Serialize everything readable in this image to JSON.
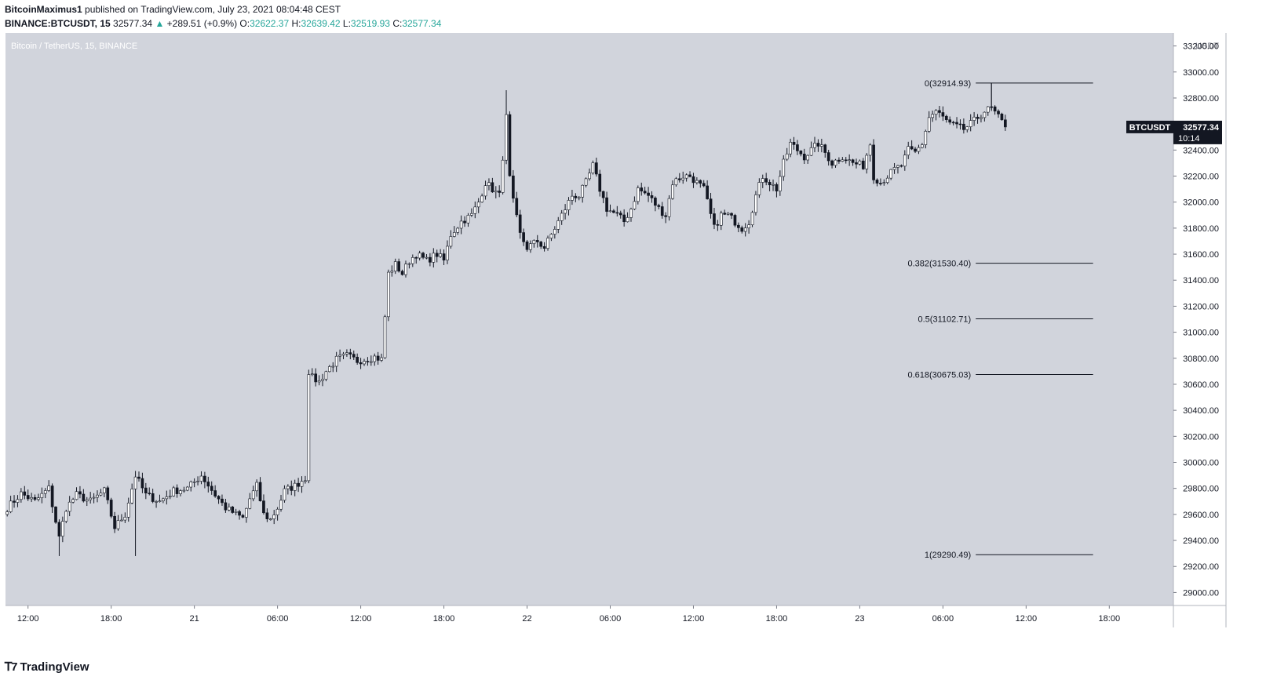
{
  "header": {
    "author": "BitcoinMaximus1",
    "published_text": "published on TradingView.com, July 23, 2021 08:04:48 CEST",
    "symbol": "BINANCE:BTCUSDT, 15",
    "last": "32577.34",
    "change": "+289.51 (+0.9%)",
    "change_arrow": "▲",
    "o_label": "O:",
    "o_value": "32622.37",
    "h_label": "H:",
    "h_value": "32639.42",
    "l_label": "L:",
    "l_value": "32519.93",
    "c_label": "C:",
    "c_value": "32577.34"
  },
  "footer": {
    "brand": "TradingView",
    "logo_icon": "tradingview-logo-icon"
  },
  "colors": {
    "plot_bg": "#d1d4dc",
    "positive": "#26a69a",
    "candle": "#131722",
    "label_bg": "#131722",
    "fib_line": "#131722"
  },
  "chart_data": {
    "type": "candlestick",
    "title": "Bitcoin / TetherUS, 15, BINANCE",
    "unit_label": "USDT",
    "ylim": [
      28900,
      33300
    ],
    "y_ticks": [
      29000,
      29200,
      29400,
      29600,
      29800,
      30000,
      30200,
      30400,
      30600,
      30800,
      31000,
      31200,
      31400,
      31600,
      31800,
      32000,
      32200,
      32400,
      32600,
      32800,
      33000,
      33200
    ],
    "y_tick_labels": [
      "29000.00",
      "29200.00",
      "29400.00",
      "29600.00",
      "29800.00",
      "30000.00",
      "30200.00",
      "30400.00",
      "30600.00",
      "30800.00",
      "31000.00",
      "31200.00",
      "31400.00",
      "31600.00",
      "31800.00",
      "32000.00",
      "32200.00",
      "32400.00",
      "32600.00",
      "32800.00",
      "33000.00",
      "33200.00"
    ],
    "x_tick_labels": [
      "12:00",
      "18:00",
      "21",
      "06:00",
      "12:00",
      "18:00",
      "22",
      "06:00",
      "12:00",
      "18:00",
      "23",
      "06:00",
      "12:00",
      "18:00"
    ],
    "x_tick_index": [
      6,
      30,
      54,
      78,
      102,
      126,
      150,
      174,
      198,
      222,
      246,
      270,
      294,
      318
    ],
    "n_slots": 337,
    "price_label": {
      "symbol": "BTCUSDT",
      "value": "32577.34",
      "countdown": "10:14"
    },
    "fib_levels": [
      {
        "label": "0(32914.93)",
        "value": 32914.93,
        "has_connector": true
      },
      {
        "label": "0.382(31530.40)",
        "value": 31530.4
      },
      {
        "label": "0.5(31102.71)",
        "value": 31102.71
      },
      {
        "label": "0.618(30675.03)",
        "value": 30675.03
      },
      {
        "label": "1(29290.49)",
        "value": 29290.49
      }
    ],
    "fib_start_index": 284,
    "fib_end_index": 302,
    "key_points": [
      [
        0,
        29650
      ],
      [
        4,
        29760
      ],
      [
        8,
        29700
      ],
      [
        12,
        29800
      ],
      [
        15,
        29420
      ],
      [
        17,
        29650
      ],
      [
        20,
        29750
      ],
      [
        24,
        29700
      ],
      [
        28,
        29780
      ],
      [
        31,
        29500
      ],
      [
        34,
        29600
      ],
      [
        37,
        29900
      ],
      [
        40,
        29750
      ],
      [
        44,
        29700
      ],
      [
        48,
        29780
      ],
      [
        52,
        29800
      ],
      [
        56,
        29900
      ],
      [
        60,
        29750
      ],
      [
        63,
        29650
      ],
      [
        66,
        29600
      ],
      [
        68,
        29570
      ],
      [
        70,
        29720
      ],
      [
        72,
        29820
      ],
      [
        74,
        29600
      ],
      [
        76,
        29560
      ],
      [
        78,
        29650
      ],
      [
        80,
        29780
      ],
      [
        83,
        29820
      ],
      [
        86,
        29880
      ],
      [
        87,
        30700
      ],
      [
        88,
        30650
      ],
      [
        90,
        30620
      ],
      [
        92,
        30700
      ],
      [
        95,
        30790
      ],
      [
        98,
        30820
      ],
      [
        101,
        30780
      ],
      [
        106,
        30810
      ],
      [
        108,
        30790
      ],
      [
        110,
        31450
      ],
      [
        112,
        31520
      ],
      [
        114,
        31450
      ],
      [
        116,
        31550
      ],
      [
        118,
        31600
      ],
      [
        121,
        31550
      ],
      [
        124,
        31600
      ],
      [
        126,
        31550
      ],
      [
        128,
        31750
      ],
      [
        131,
        31850
      ],
      [
        134,
        31900
      ],
      [
        136,
        32000
      ],
      [
        138,
        32150
      ],
      [
        140,
        32100
      ],
      [
        142,
        32050
      ],
      [
        143,
        32350
      ],
      [
        144,
        32650
      ],
      [
        145,
        32180
      ],
      [
        146,
        32000
      ],
      [
        148,
        31750
      ],
      [
        150,
        31650
      ],
      [
        153,
        31700
      ],
      [
        155,
        31650
      ],
      [
        157,
        31750
      ],
      [
        159,
        31850
      ],
      [
        161,
        31950
      ],
      [
        163,
        32050
      ],
      [
        165,
        32050
      ],
      [
        167,
        32150
      ],
      [
        169,
        32280
      ],
      [
        171,
        32100
      ],
      [
        173,
        31950
      ],
      [
        176,
        31900
      ],
      [
        178,
        31850
      ],
      [
        180,
        31950
      ],
      [
        182,
        32100
      ],
      [
        185,
        32050
      ],
      [
        188,
        31950
      ],
      [
        190,
        31900
      ],
      [
        192,
        32150
      ],
      [
        195,
        32200
      ],
      [
        197,
        32200
      ],
      [
        199,
        32150
      ],
      [
        201,
        32100
      ],
      [
        204,
        31800
      ],
      [
        206,
        31900
      ],
      [
        208,
        31900
      ],
      [
        210,
        31850
      ],
      [
        212,
        31800
      ],
      [
        214,
        31850
      ],
      [
        216,
        32050
      ],
      [
        218,
        32200
      ],
      [
        220,
        32150
      ],
      [
        222,
        32100
      ],
      [
        224,
        32300
      ],
      [
        226,
        32450
      ],
      [
        228,
        32400
      ],
      [
        230,
        32350
      ],
      [
        232,
        32400
      ],
      [
        234,
        32450
      ],
      [
        236,
        32380
      ],
      [
        238,
        32300
      ],
      [
        241,
        32350
      ],
      [
        244,
        32300
      ],
      [
        247,
        32280
      ],
      [
        249,
        32450
      ],
      [
        250,
        32200
      ],
      [
        252,
        32150
      ],
      [
        254,
        32200
      ],
      [
        256,
        32250
      ],
      [
        258,
        32280
      ],
      [
        260,
        32400
      ],
      [
        262,
        32380
      ],
      [
        264,
        32450
      ],
      [
        266,
        32650
      ],
      [
        268,
        32700
      ],
      [
        270,
        32650
      ],
      [
        272,
        32600
      ],
      [
        274,
        32580
      ],
      [
        276,
        32560
      ],
      [
        278,
        32600
      ],
      [
        280,
        32650
      ],
      [
        282,
        32700
      ],
      [
        284,
        32720
      ],
      [
        286,
        32650
      ],
      [
        288,
        32580
      ]
    ]
  }
}
